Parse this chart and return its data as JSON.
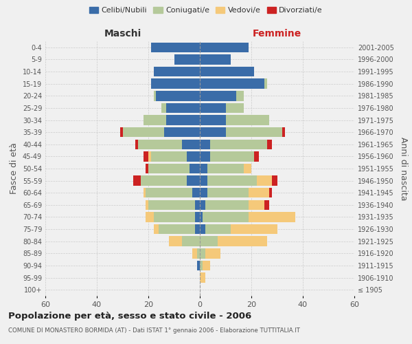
{
  "age_groups": [
    "100+",
    "95-99",
    "90-94",
    "85-89",
    "80-84",
    "75-79",
    "70-74",
    "65-69",
    "60-64",
    "55-59",
    "50-54",
    "45-49",
    "40-44",
    "35-39",
    "30-34",
    "25-29",
    "20-24",
    "15-19",
    "10-14",
    "5-9",
    "0-4"
  ],
  "birth_years": [
    "≤ 1905",
    "1906-1910",
    "1911-1915",
    "1916-1920",
    "1921-1925",
    "1926-1930",
    "1931-1935",
    "1936-1940",
    "1941-1945",
    "1946-1950",
    "1951-1955",
    "1956-1960",
    "1961-1965",
    "1966-1970",
    "1971-1975",
    "1976-1980",
    "1981-1985",
    "1986-1990",
    "1991-1995",
    "1996-2000",
    "2001-2005"
  ],
  "colors": {
    "celibi": "#3a6ca8",
    "coniugati": "#b5c99a",
    "vedovi": "#f5c97a",
    "divorziati": "#cc2222"
  },
  "males": {
    "celibi": [
      0,
      0,
      1,
      0,
      0,
      2,
      2,
      2,
      3,
      5,
      4,
      5,
      7,
      14,
      13,
      13,
      17,
      19,
      18,
      10,
      19
    ],
    "coniugati": [
      0,
      0,
      0,
      1,
      7,
      14,
      16,
      18,
      18,
      18,
      16,
      14,
      17,
      16,
      9,
      2,
      1,
      0,
      0,
      0,
      0
    ],
    "vedovi": [
      0,
      0,
      0,
      2,
      5,
      2,
      3,
      1,
      1,
      0,
      0,
      1,
      0,
      0,
      0,
      0,
      0,
      0,
      0,
      0,
      0
    ],
    "divorziati": [
      0,
      0,
      0,
      0,
      0,
      0,
      0,
      0,
      0,
      3,
      1,
      2,
      1,
      1,
      0,
      0,
      0,
      0,
      0,
      0,
      0
    ]
  },
  "females": {
    "celibi": [
      0,
      0,
      0,
      0,
      0,
      2,
      1,
      2,
      3,
      3,
      3,
      4,
      4,
      10,
      10,
      10,
      14,
      25,
      21,
      12,
      19
    ],
    "coniugati": [
      0,
      0,
      1,
      2,
      7,
      10,
      18,
      17,
      16,
      19,
      14,
      17,
      22,
      22,
      17,
      7,
      3,
      1,
      0,
      0,
      0
    ],
    "vedovi": [
      0,
      2,
      3,
      6,
      19,
      18,
      18,
      6,
      8,
      6,
      3,
      0,
      0,
      0,
      0,
      0,
      0,
      0,
      0,
      0,
      0
    ],
    "divorziati": [
      0,
      0,
      0,
      0,
      0,
      0,
      0,
      2,
      1,
      2,
      0,
      2,
      2,
      1,
      0,
      0,
      0,
      0,
      0,
      0,
      0
    ]
  },
  "title": "Popolazione per età, sesso e stato civile - 2006",
  "subtitle": "COMUNE DI MONASTERO BORMIDA (AT) - Dati ISTAT 1° gennaio 2006 - Elaborazione TUTTITALIA.IT",
  "xlabel_left": "Maschi",
  "xlabel_right": "Femmine",
  "ylabel_left": "Fasce di età",
  "ylabel_right": "Anni di nascita",
  "xlim": 60,
  "legend_labels": [
    "Celibi/Nubili",
    "Coniugati/e",
    "Vedovi/e",
    "Divorziati/e"
  ],
  "background_color": "#f0f0f0"
}
